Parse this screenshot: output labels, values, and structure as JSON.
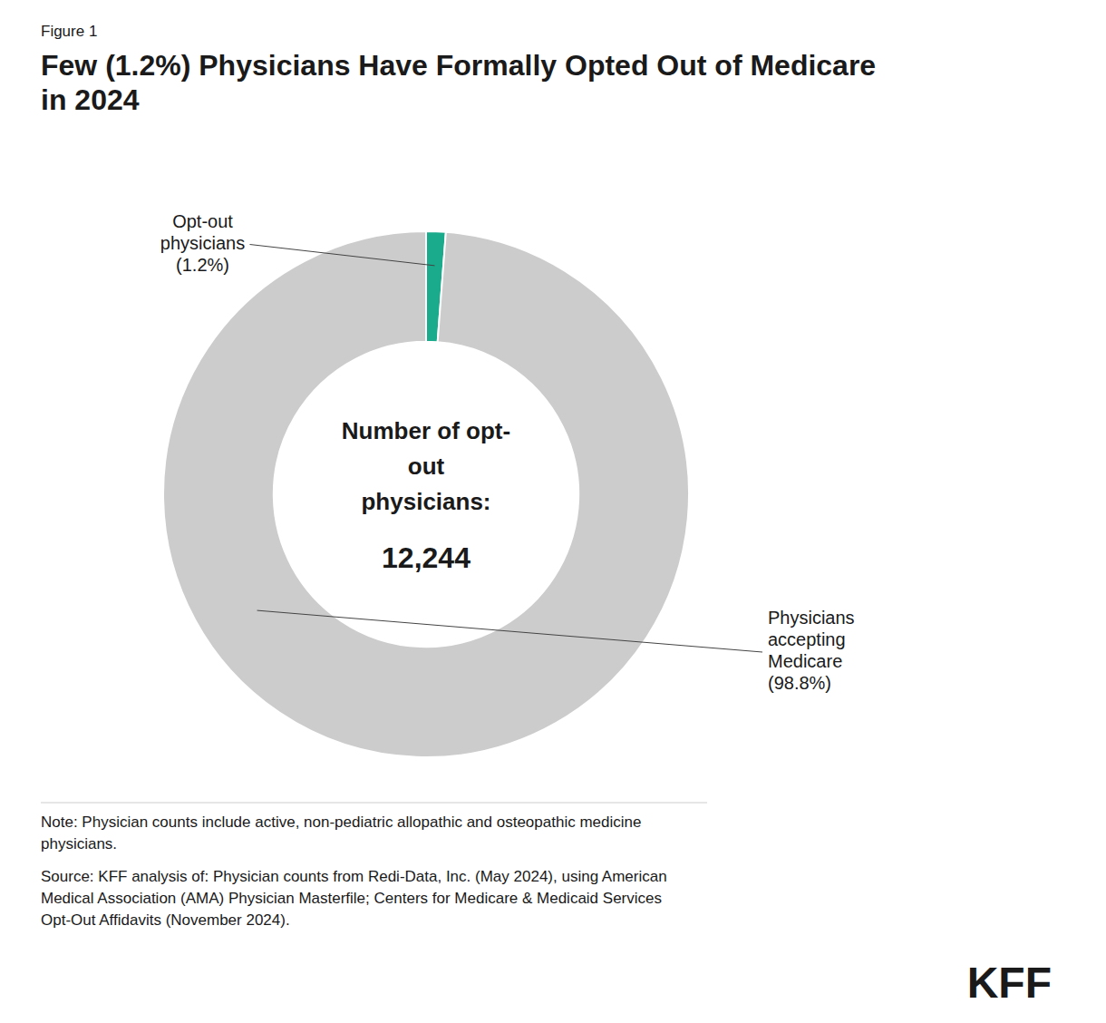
{
  "chart_data": {
    "type": "donut",
    "figure_label": "Figure 1",
    "title": "Few (1.2%) Physicians Have Formally Opted Out of Medicare\nin 2024",
    "categories": [
      "Opt-out\nphysicians\n(1.2%)",
      "Physicians\naccepting\nMedicare\n(98.8%)"
    ],
    "values": [
      1.2,
      98.8
    ],
    "colors": [
      "#1aaa8c",
      "#cccccc"
    ],
    "annotations": [
      "Number of opt-\nout\nphysicians:",
      "12,244"
    ],
    "note": "Note: Physician counts include active, non-pediatric allopathic and osteopathic medicine\nphysicians.",
    "source": "Source: KFF analysis of: Physician counts from Redi-Data, Inc. (May 2024), using American\nMedical Association (AMA) Physician Masterfile; Centers for Medicare & Medicaid Services\nOpt-Out Affidavits (November 2024).",
    "logo": "KFF"
  }
}
